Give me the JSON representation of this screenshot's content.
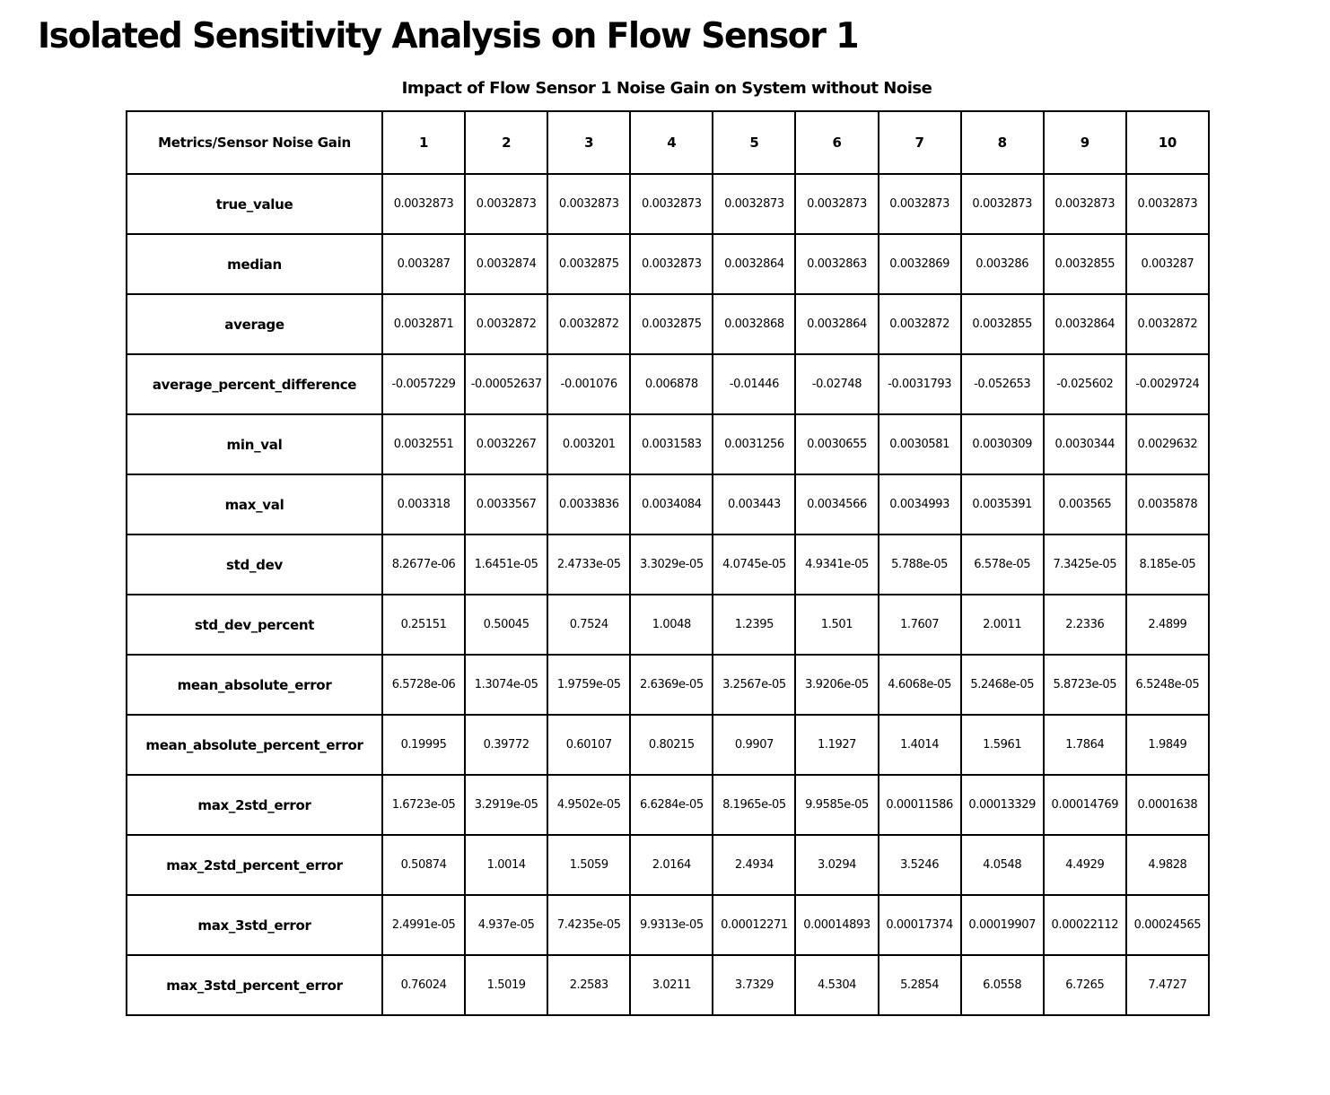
{
  "page": {
    "title": "Isolated Sensitivity Analysis on Flow Sensor 1",
    "subtitle": "Impact of Flow Sensor 1 Noise Gain on System without Noise"
  },
  "chart_data": {
    "type": "table",
    "title": "Impact of Flow Sensor 1 Noise Gain on System without Noise",
    "columns": [
      "Metrics/Sensor Noise Gain",
      "1",
      "2",
      "3",
      "4",
      "5",
      "6",
      "7",
      "8",
      "9",
      "10"
    ],
    "rows": [
      {
        "metric": "true_value",
        "values": [
          "0.0032873",
          "0.0032873",
          "0.0032873",
          "0.0032873",
          "0.0032873",
          "0.0032873",
          "0.0032873",
          "0.0032873",
          "0.0032873",
          "0.0032873"
        ]
      },
      {
        "metric": "median",
        "values": [
          "0.003287",
          "0.0032874",
          "0.0032875",
          "0.0032873",
          "0.0032864",
          "0.0032863",
          "0.0032869",
          "0.003286",
          "0.0032855",
          "0.003287"
        ]
      },
      {
        "metric": "average",
        "values": [
          "0.0032871",
          "0.0032872",
          "0.0032872",
          "0.0032875",
          "0.0032868",
          "0.0032864",
          "0.0032872",
          "0.0032855",
          "0.0032864",
          "0.0032872"
        ]
      },
      {
        "metric": "average_percent_difference",
        "values": [
          "-0.0057229",
          "-0.00052637",
          "-0.001076",
          "0.006878",
          "-0.01446",
          "-0.02748",
          "-0.0031793",
          "-0.052653",
          "-0.025602",
          "-0.0029724"
        ]
      },
      {
        "metric": "min_val",
        "values": [
          "0.0032551",
          "0.0032267",
          "0.003201",
          "0.0031583",
          "0.0031256",
          "0.0030655",
          "0.0030581",
          "0.0030309",
          "0.0030344",
          "0.0029632"
        ]
      },
      {
        "metric": "max_val",
        "values": [
          "0.003318",
          "0.0033567",
          "0.0033836",
          "0.0034084",
          "0.003443",
          "0.0034566",
          "0.0034993",
          "0.0035391",
          "0.003565",
          "0.0035878"
        ]
      },
      {
        "metric": "std_dev",
        "values": [
          "8.2677e-06",
          "1.6451e-05",
          "2.4733e-05",
          "3.3029e-05",
          "4.0745e-05",
          "4.9341e-05",
          "5.788e-05",
          "6.578e-05",
          "7.3425e-05",
          "8.185e-05"
        ]
      },
      {
        "metric": "std_dev_percent",
        "values": [
          "0.25151",
          "0.50045",
          "0.7524",
          "1.0048",
          "1.2395",
          "1.501",
          "1.7607",
          "2.0011",
          "2.2336",
          "2.4899"
        ]
      },
      {
        "metric": "mean_absolute_error",
        "values": [
          "6.5728e-06",
          "1.3074e-05",
          "1.9759e-05",
          "2.6369e-05",
          "3.2567e-05",
          "3.9206e-05",
          "4.6068e-05",
          "5.2468e-05",
          "5.8723e-05",
          "6.5248e-05"
        ]
      },
      {
        "metric": "mean_absolute_percent_error",
        "values": [
          "0.19995",
          "0.39772",
          "0.60107",
          "0.80215",
          "0.9907",
          "1.1927",
          "1.4014",
          "1.5961",
          "1.7864",
          "1.9849"
        ]
      },
      {
        "metric": "max_2std_error",
        "values": [
          "1.6723e-05",
          "3.2919e-05",
          "4.9502e-05",
          "6.6284e-05",
          "8.1965e-05",
          "9.9585e-05",
          "0.00011586",
          "0.00013329",
          "0.00014769",
          "0.0001638"
        ]
      },
      {
        "metric": "max_2std_percent_error",
        "values": [
          "0.50874",
          "1.0014",
          "1.5059",
          "2.0164",
          "2.4934",
          "3.0294",
          "3.5246",
          "4.0548",
          "4.4929",
          "4.9828"
        ]
      },
      {
        "metric": "max_3std_error",
        "values": [
          "2.4991e-05",
          "4.937e-05",
          "7.4235e-05",
          "9.9313e-05",
          "0.00012271",
          "0.00014893",
          "0.00017374",
          "0.00019907",
          "0.00022112",
          "0.00024565"
        ]
      },
      {
        "metric": "max_3std_percent_error",
        "values": [
          "0.76024",
          "1.5019",
          "2.2583",
          "3.0211",
          "3.7329",
          "4.5304",
          "5.2854",
          "6.0558",
          "6.7265",
          "7.4727"
        ]
      }
    ]
  }
}
